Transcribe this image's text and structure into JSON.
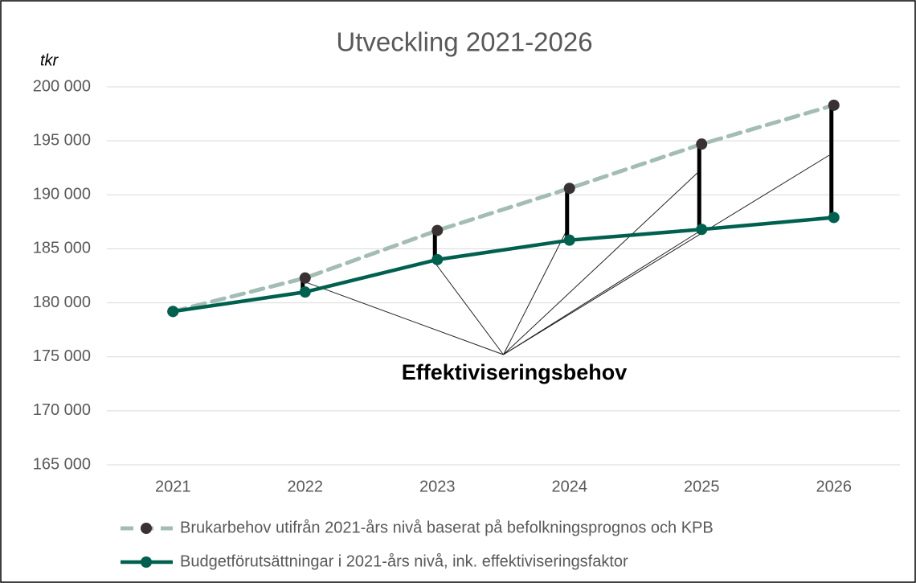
{
  "chart_data": {
    "type": "line",
    "title": "Utveckling 2021-2026",
    "y_axis_label": "tkr",
    "categories": [
      "2021",
      "2022",
      "2023",
      "2024",
      "2025",
      "2026"
    ],
    "series": [
      {
        "name": "Brukarbehov utifrån 2021-års nivå baserat på befolkningsprognos och KPB",
        "color": "#a3bdb5",
        "marker_color": "#3a3232",
        "dashed": true,
        "values": [
          179200,
          182300,
          186700,
          190600,
          194700,
          198300
        ]
      },
      {
        "name": "Budgetförutsättningar i 2021-års nivå, ink. effektiviseringsfaktor",
        "color": "#00604f",
        "marker_color": "#00604f",
        "dashed": false,
        "values": [
          179200,
          181000,
          184000,
          185800,
          186800,
          187900
        ]
      }
    ],
    "annotation": "Effektiviseringsbehov",
    "ylim": [
      165000,
      200000
    ],
    "yticks": [
      {
        "value": 165000,
        "label": "165 000"
      },
      {
        "value": 170000,
        "label": "170 000"
      },
      {
        "value": 175000,
        "label": "175 000"
      },
      {
        "value": 180000,
        "label": "180 000"
      },
      {
        "value": 185000,
        "label": "185 000"
      },
      {
        "value": 190000,
        "label": "190 000"
      },
      {
        "value": 195000,
        "label": "195 000"
      },
      {
        "value": 200000,
        "label": "200 000"
      }
    ],
    "grid": true,
    "legend": "bottom"
  }
}
